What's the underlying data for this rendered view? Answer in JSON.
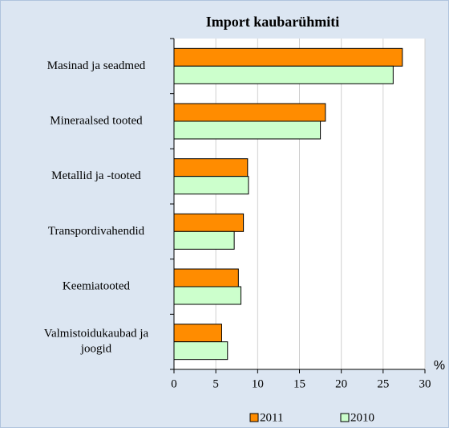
{
  "chart_data": {
    "type": "barh",
    "title": "Import kaubarühmiti",
    "categories": [
      "Masinad ja seadmed",
      "Mineraalsed tooted",
      "Metallid ja -tooted",
      "Transpordivahendid",
      "Keemiatooted",
      "Valmistoidukaubad ja joogid"
    ],
    "series": [
      {
        "name": "2011",
        "color": "#ff8c00",
        "values": [
          27.3,
          18.1,
          8.8,
          8.3,
          7.7,
          5.7
        ]
      },
      {
        "name": "2010",
        "color": "#ccffcc",
        "values": [
          26.2,
          17.5,
          8.9,
          7.2,
          8.0,
          6.4
        ]
      }
    ],
    "xlabel": "%",
    "xlim": [
      0,
      30
    ],
    "xticks": [
      0,
      5,
      10,
      15,
      20,
      25,
      30
    ],
    "grid": true,
    "legend": "bottom"
  }
}
